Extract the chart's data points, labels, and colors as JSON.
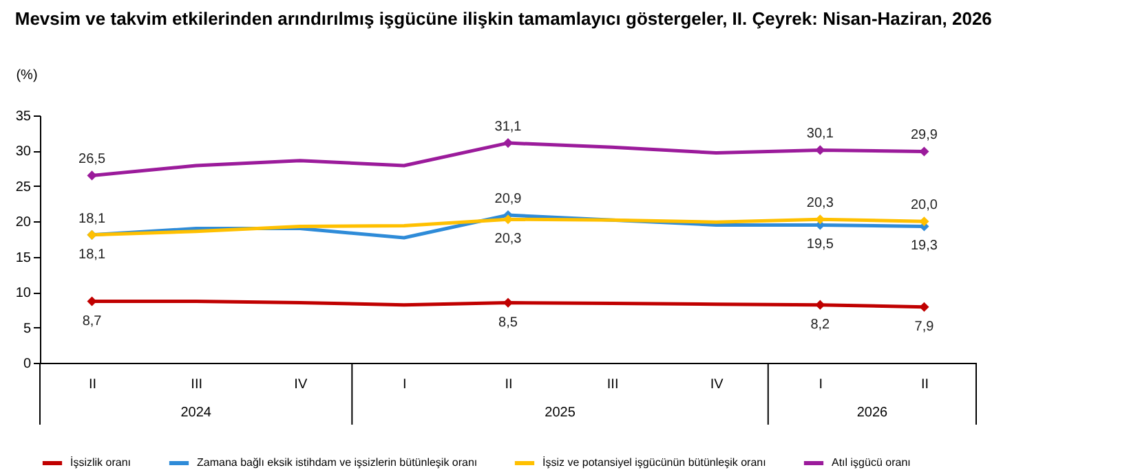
{
  "chart_data": {
    "type": "line",
    "title": "Mevsim ve takvim etkilerinden arındırılmış işgücüne ilişkin tamamlayıcı göstergeler, II. Çeyrek: Nisan-Haziran, 2026",
    "ylabel": "(%)",
    "categories": [
      "II",
      "III",
      "IV",
      "I",
      "II",
      "III",
      "IV",
      "I",
      "II"
    ],
    "annotations": [
      "2024",
      "2025",
      "2026"
    ],
    "series": [
      {
        "name": "İşsizlik oranı",
        "color": "#c00000",
        "values": [
          8.7,
          8.7,
          8.5,
          8.2,
          8.5,
          8.4,
          8.3,
          8.2,
          7.9
        ],
        "value_labels": [
          "8,7",
          null,
          null,
          null,
          "8,5",
          null,
          null,
          "8,2",
          "7,9"
        ]
      },
      {
        "name": "Zamana bağlı eksik istihdam ve işsizlerin bütünleşik oranı",
        "color": "#2e8bd8",
        "values": [
          18.1,
          19.0,
          19.0,
          17.7,
          20.9,
          20.2,
          19.5,
          19.5,
          19.3
        ],
        "value_labels": [
          "18,1",
          null,
          null,
          null,
          "20,9",
          null,
          null,
          "19,5",
          "19,3"
        ]
      },
      {
        "name": "İşsiz ve potansiyel işgücünün bütünleşik oranı",
        "color": "#ffc000",
        "values": [
          18.1,
          18.6,
          19.3,
          19.4,
          20.3,
          20.2,
          19.9,
          20.3,
          20.0
        ],
        "value_labels": [
          "18,1",
          null,
          null,
          null,
          "20,3",
          null,
          null,
          "20,3",
          "20,0"
        ]
      },
      {
        "name": "Atıl işgücü oranı",
        "color": "#9b1b9b",
        "values": [
          26.5,
          27.9,
          28.6,
          27.9,
          31.1,
          30.5,
          29.7,
          30.1,
          29.9
        ],
        "value_labels": [
          "26,5",
          null,
          null,
          null,
          "31,1",
          null,
          null,
          "30,1",
          "29,9"
        ]
      }
    ],
    "ylim": [
      0,
      35
    ],
    "yticks": [
      0,
      5,
      10,
      15,
      20,
      25,
      30,
      35
    ],
    "grid": false,
    "legend": "bottom",
    "line_style": "solid"
  }
}
